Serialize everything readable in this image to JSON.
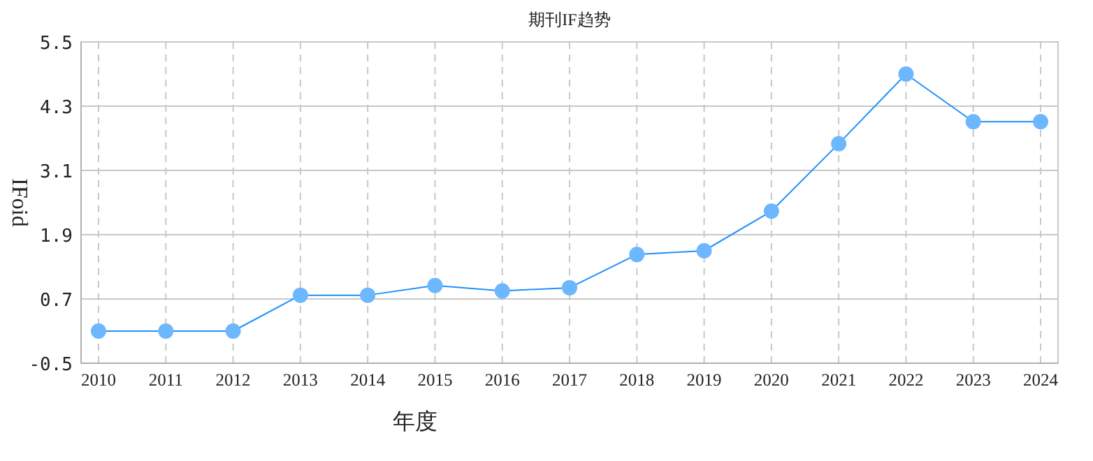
{
  "chart_data": {
    "type": "line",
    "title": "期刊IF趋势",
    "xlabel": "年度",
    "ylabel": "IFoid",
    "categories": [
      "2010",
      "2011",
      "2012",
      "2013",
      "2014",
      "2015",
      "2016",
      "2017",
      "2018",
      "2019",
      "2020",
      "2021",
      "2022",
      "2023",
      "2024"
    ],
    "series": [
      {
        "color": "#1e90ff",
        "values": [
          0.1,
          0.1,
          0.1,
          0.77,
          0.77,
          0.95,
          0.85,
          0.91,
          1.53,
          1.6,
          2.34,
          3.6,
          4.9,
          4.01,
          4.01
        ]
      }
    ],
    "ylim": [
      -0.5,
      5.5
    ],
    "yticks": [
      -0.5,
      0.7,
      1.9,
      3.1,
      4.3,
      5.5
    ],
    "grid": true,
    "marker": "circle"
  }
}
